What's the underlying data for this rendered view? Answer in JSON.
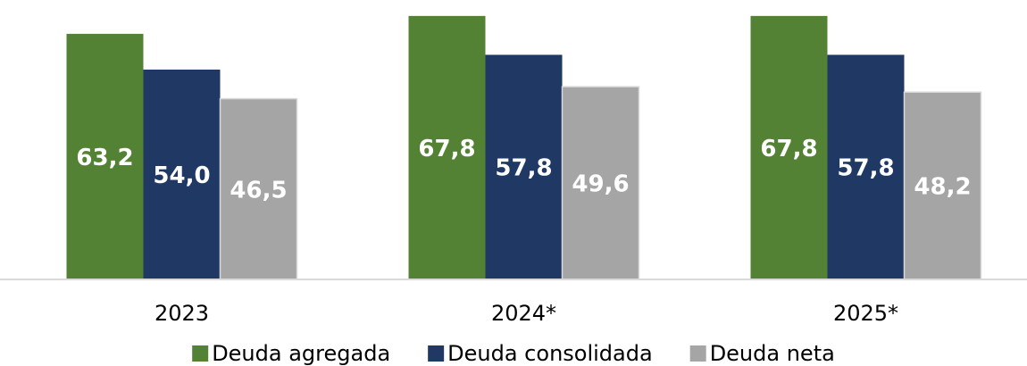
{
  "chart_data": {
    "type": "bar",
    "categories": [
      "2023",
      "2024*",
      "2025*"
    ],
    "series": [
      {
        "name": "Deuda agregada",
        "color": "#548235",
        "values": [
          63.2,
          67.8,
          67.8
        ],
        "value_labels": [
          "63,2",
          "67,8",
          "67,8"
        ]
      },
      {
        "name": "Deuda consolidada",
        "color": "#1f3864",
        "values": [
          54.0,
          57.8,
          57.8
        ],
        "value_labels": [
          "54,0",
          "57,8",
          "57,8"
        ]
      },
      {
        "name": "Deuda neta",
        "color": "#a5a5a5",
        "values": [
          46.5,
          49.6,
          48.2
        ],
        "value_labels": [
          "46,5",
          "49,6",
          "48,2"
        ]
      }
    ],
    "ylim": [
      0,
      68
    ],
    "legend": "bottom"
  }
}
